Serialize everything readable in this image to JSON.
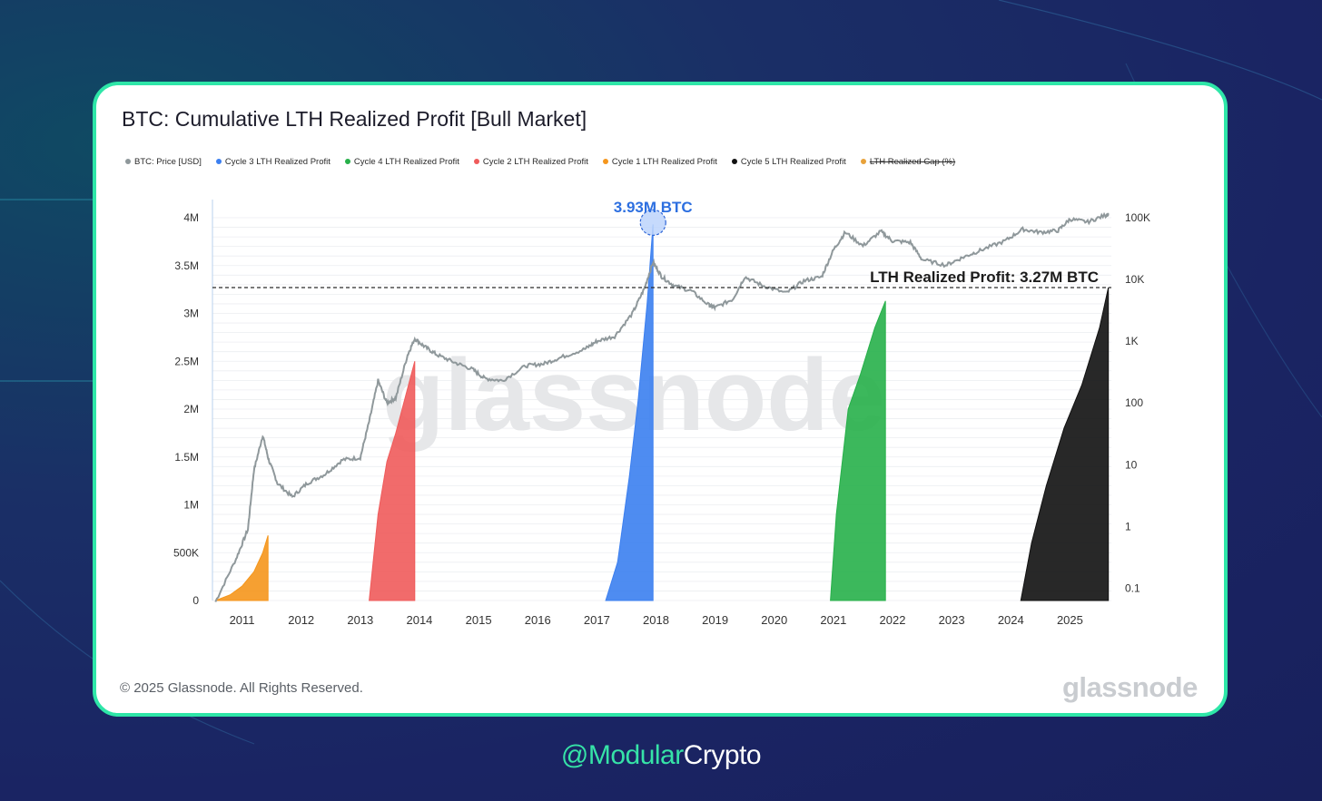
{
  "title": "BTC: Cumulative LTH Realized Profit [Bull Market]",
  "legend": [
    {
      "label": "BTC: Price [USD]",
      "color": "#8f989b",
      "struck": false
    },
    {
      "label": "Cycle 3 LTH Realized Profit",
      "color": "#3b7ff0",
      "struck": false
    },
    {
      "label": "Cycle 4 LTH Realized Profit",
      "color": "#27b04a",
      "struck": false
    },
    {
      "label": "Cycle 2 LTH Realized Profit",
      "color": "#ef5b5b",
      "struck": false
    },
    {
      "label": "Cycle 1 LTH Realized Profit",
      "color": "#f5961c",
      "struck": false
    },
    {
      "label": "Cycle 5 LTH Realized Profit",
      "color": "#111111",
      "struck": false
    },
    {
      "label": "LTH Realized Cap (%)",
      "color": "#e8a23a",
      "struck": true
    }
  ],
  "annotations": {
    "peak_label": "3.93M BTC",
    "current_label": "LTH Realized Profit: 3.27M BTC"
  },
  "watermark": "glassnode",
  "copyright": "© 2025 Glassnode. All Rights Reserved.",
  "logo": "glassnode",
  "handle_a": "@Modular",
  "handle_b": "Crypto",
  "chart_data": {
    "type": "area",
    "x_ticks": [
      "2011",
      "2012",
      "2013",
      "2014",
      "2015",
      "2016",
      "2017",
      "2018",
      "2019",
      "2020",
      "2021",
      "2022",
      "2023",
      "2024",
      "2025"
    ],
    "y_left_ticks": [
      "0",
      "500K",
      "1M",
      "1.5M",
      "2M",
      "2.5M",
      "3M",
      "3.5M",
      "4M"
    ],
    "y_left_range": [
      0,
      4000000
    ],
    "y_right_ticks": [
      "0.1",
      "1",
      "10",
      "100",
      "1K",
      "10K",
      "100K"
    ],
    "y_right_scale": "log",
    "reference_line": 3270000,
    "series": [
      {
        "name": "Cycle 1 LTH Realized Profit",
        "color": "#f5961c",
        "x": [
          2010.55,
          2010.8,
          2011.0,
          2011.2,
          2011.35,
          2011.44
        ],
        "y": [
          0,
          60000,
          150000,
          300000,
          500000,
          680000
        ]
      },
      {
        "name": "Cycle 2 LTH Realized Profit",
        "color": "#ef5b5b",
        "x": [
          2013.15,
          2013.3,
          2013.45,
          2013.6,
          2013.75,
          2013.92
        ],
        "y": [
          0,
          900000,
          1450000,
          1750000,
          2100000,
          2500000
        ]
      },
      {
        "name": "Cycle 3 LTH Realized Profit",
        "color": "#3b7ff0",
        "x": [
          2017.15,
          2017.35,
          2017.55,
          2017.7,
          2017.85,
          2017.95
        ],
        "y": [
          0,
          400000,
          1300000,
          2100000,
          3100000,
          3930000
        ]
      },
      {
        "name": "Cycle 4 LTH Realized Profit",
        "color": "#27b04a",
        "x": [
          2020.95,
          2021.05,
          2021.25,
          2021.45,
          2021.7,
          2021.88
        ],
        "y": [
          0,
          900000,
          2000000,
          2350000,
          2850000,
          3130000
        ]
      },
      {
        "name": "Cycle 5 LTH Realized Profit",
        "color": "#111111",
        "x": [
          2024.17,
          2024.35,
          2024.6,
          2024.9,
          2025.2,
          2025.5,
          2025.65
        ],
        "y": [
          0,
          600000,
          1200000,
          1800000,
          2250000,
          2850000,
          3270000
        ]
      },
      {
        "name": "BTC: Price [USD]",
        "color": "#8f989b",
        "axis": "right",
        "x": [
          2010.55,
          2010.9,
          2011.1,
          2011.2,
          2011.35,
          2011.45,
          2011.6,
          2011.85,
          2012.1,
          2012.4,
          2012.7,
          2013.0,
          2013.15,
          2013.3,
          2013.45,
          2013.6,
          2013.8,
          2013.92,
          2014.1,
          2014.3,
          2014.6,
          2014.9,
          2015.1,
          2015.4,
          2015.8,
          2016.1,
          2016.4,
          2016.8,
          2017.0,
          2017.3,
          2017.6,
          2017.8,
          2017.95,
          2018.1,
          2018.3,
          2018.6,
          2018.9,
          2019.0,
          2019.3,
          2019.5,
          2019.8,
          2020.2,
          2020.5,
          2020.8,
          2021.0,
          2021.2,
          2021.5,
          2021.8,
          2022.0,
          2022.3,
          2022.5,
          2022.9,
          2023.2,
          2023.5,
          2023.9,
          2024.2,
          2024.5,
          2024.8,
          2025.0,
          2025.3,
          2025.6,
          2025.65
        ],
        "y": [
          0.06,
          0.3,
          0.9,
          8,
          30,
          12,
          5,
          3,
          5,
          7,
          12,
          13,
          50,
          230,
          100,
          120,
          600,
          1100,
          800,
          600,
          450,
          350,
          250,
          230,
          400,
          430,
          550,
          750,
          1000,
          1200,
          2800,
          7000,
          19000,
          11000,
          8000,
          6500,
          3800,
          3500,
          4800,
          11000,
          8000,
          6000,
          9500,
          11000,
          30000,
          58000,
          35000,
          60000,
          42000,
          40000,
          21000,
          17000,
          23000,
          30000,
          42000,
          65000,
          58000,
          62000,
          95000,
          85000,
          110000,
          112000
        ]
      }
    ]
  }
}
